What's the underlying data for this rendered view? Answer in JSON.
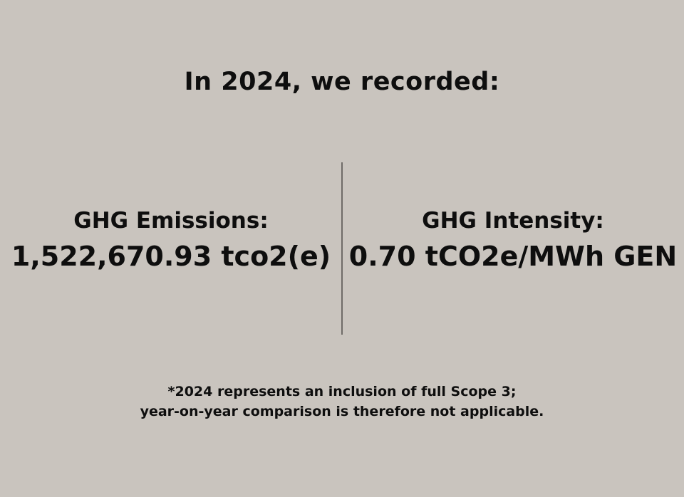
{
  "title": "In 2024, we recorded:",
  "metrics": [
    {
      "label": "GHG Emissions:",
      "value": "1,522,670.93 tco2(e)"
    },
    {
      "label": "GHG Intensity:",
      "value": "0.70 tCO2e/MWh GEN"
    }
  ],
  "footnote": {
    "line1": "*2024 represents an inclusion of full Scope 3;",
    "line2": "year-on-year comparison is therefore not applicable."
  },
  "colors": {
    "background": "#c9c4be",
    "text": "#0e0e0e",
    "divider": "#6f6b67"
  }
}
